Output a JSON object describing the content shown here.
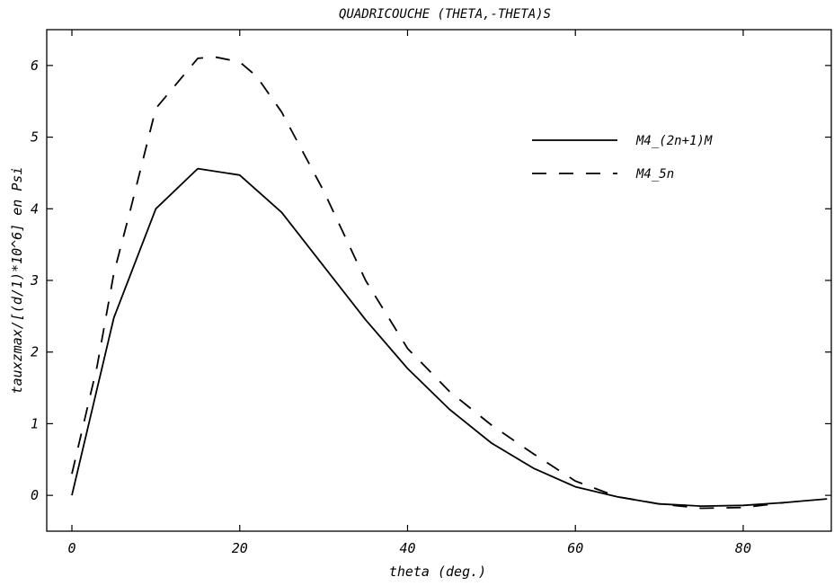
{
  "chart_data": {
    "type": "line",
    "title": "QUADRICOUCHE (THETA,-THETA)S",
    "xlabel": "theta (deg.)",
    "ylabel": "tauxzmax/[(d/1)*10^6] en Psi",
    "xlim": [
      -3,
      90.5
    ],
    "ylim": [
      -0.5,
      6.5
    ],
    "xticks": [
      0,
      20,
      40,
      60,
      80
    ],
    "yticks": [
      0,
      1,
      2,
      3,
      4,
      5,
      6
    ],
    "xtick_labels": [
      "0",
      "20",
      "40",
      "60",
      "80"
    ],
    "ytick_labels": [
      "0",
      "1",
      "2",
      "3",
      "4",
      "5",
      "6"
    ],
    "grid": false,
    "legend_position": "top-right",
    "series": [
      {
        "name": "M4_(2n+1)M",
        "style": "solid",
        "color": "#000000",
        "x": [
          0,
          5,
          10,
          15,
          20,
          25,
          30,
          35,
          40,
          45,
          50,
          55,
          60,
          65,
          70,
          75,
          80,
          85,
          90
        ],
        "y": [
          0,
          2.48,
          4.0,
          4.56,
          4.47,
          3.95,
          3.2,
          2.45,
          1.77,
          1.2,
          0.73,
          0.38,
          0.12,
          -0.02,
          -0.12,
          -0.15,
          -0.14,
          -0.1,
          -0.05
        ]
      },
      {
        "name": "M4_5n",
        "style": "dashed",
        "color": "#000000",
        "x": [
          0,
          3,
          5,
          7,
          10,
          15,
          17,
          20,
          22,
          25,
          30,
          35,
          40,
          45,
          50,
          55,
          60,
          65,
          70,
          75,
          80,
          85
        ],
        "y": [
          0.3,
          1.8,
          3.1,
          4.0,
          5.4,
          6.1,
          6.12,
          6.05,
          5.85,
          5.35,
          4.25,
          3.0,
          2.05,
          1.45,
          0.98,
          0.58,
          0.2,
          -0.02,
          -0.12,
          -0.18,
          -0.17,
          -0.1
        ]
      }
    ]
  }
}
